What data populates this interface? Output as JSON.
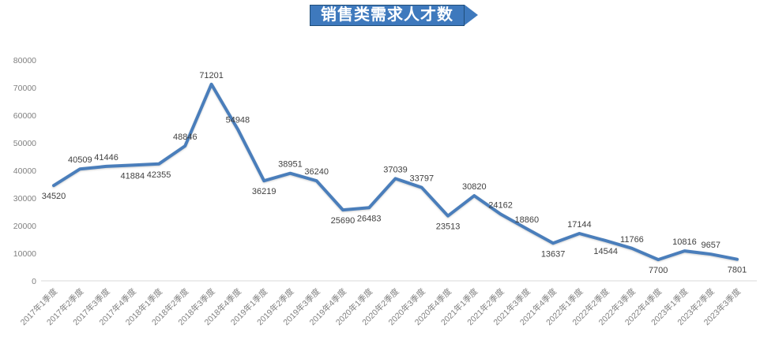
{
  "title": {
    "text": "销售类需求人才数"
  },
  "colors": {
    "line": "#4A7EBB",
    "banner_bg": "#3E79BD",
    "banner_border": "#1F4E79",
    "banner_text": "#FFFFFF",
    "axis_text": "#808080",
    "data_label": "#3F3F3F",
    "axis_line": "#D9D9D9",
    "background": "#FFFFFF"
  },
  "chart_data": {
    "type": "line",
    "title": "销售类需求人才数",
    "categories": [
      "2017年1季度",
      "2017年2季度",
      "2017年3季度",
      "2017年4季度",
      "2018年1季度",
      "2018年2季度",
      "2018年3季度",
      "2018年4季度",
      "2019年1季度",
      "2019年2季度",
      "2019年3季度",
      "2019年4季度",
      "2020年1季度",
      "2020年2季度",
      "2020年3季度",
      "2020年4季度",
      "2021年1季度",
      "2021年2季度",
      "2021年3季度",
      "2021年4季度",
      "2022年1季度",
      "2022年2季度",
      "2022年3季度",
      "2022年4季度",
      "2023年1季度",
      "2023年2季度",
      "2023年3季度"
    ],
    "values": [
      34520,
      40509,
      41446,
      41884,
      42355,
      48846,
      71201,
      54948,
      36219,
      38951,
      36240,
      25690,
      26483,
      37039,
      33797,
      23513,
      30820,
      24162,
      18860,
      13637,
      17144,
      14544,
      11766,
      7700,
      10816,
      9657,
      7801
    ],
    "label_positions": [
      "below",
      "above",
      "above",
      "below",
      "below",
      "above",
      "above",
      "above",
      "below",
      "above",
      "above",
      "below",
      "below",
      "above",
      "above",
      "below",
      "above",
      "above",
      "above",
      "below",
      "above",
      "below",
      "above",
      "below",
      "above",
      "above",
      "below"
    ],
    "xlabel": "",
    "ylabel": "",
    "ylim": [
      0,
      80000
    ],
    "ytick_interval": 10000,
    "yticks": [
      "0",
      "10000",
      "20000",
      "30000",
      "40000",
      "50000",
      "60000",
      "70000",
      "80000"
    ],
    "grid": "off",
    "legend": "none",
    "markers": "none",
    "x_label_rotation_deg": -45
  }
}
